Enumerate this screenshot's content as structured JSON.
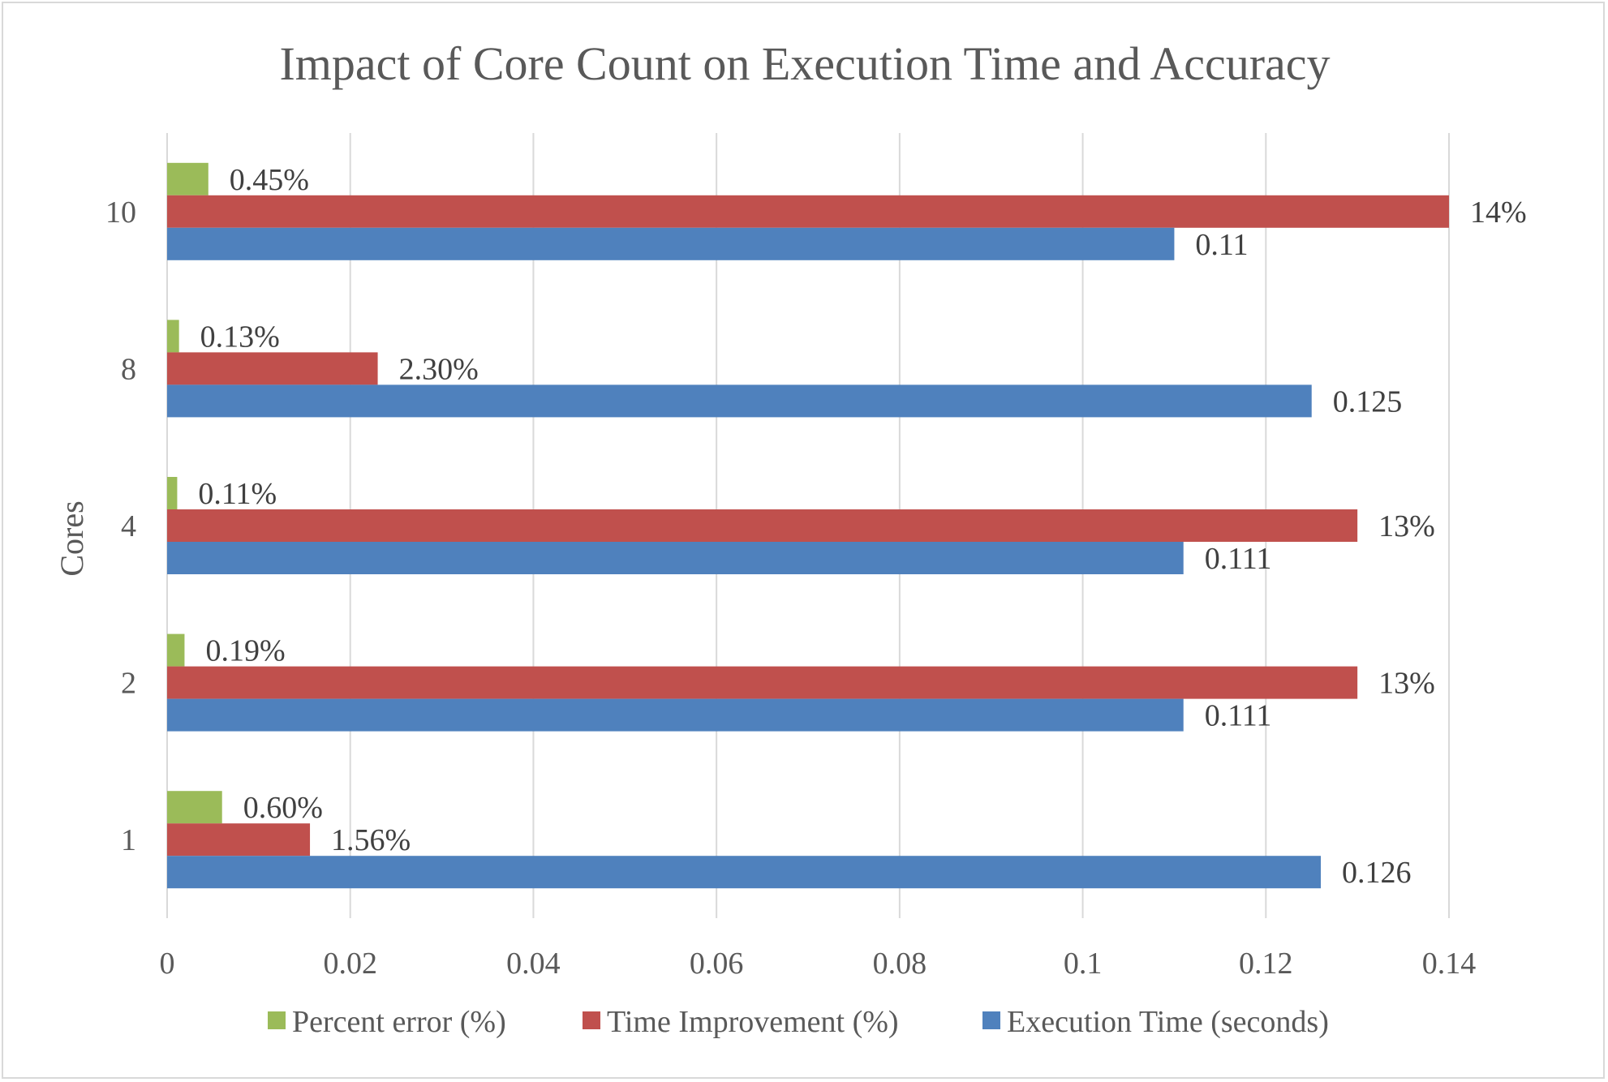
{
  "chart_data": {
    "type": "bar",
    "orientation": "horizontal",
    "title": "Impact of Core Count on Execution Time and Accuracy",
    "xlabel": "",
    "ylabel": "Cores",
    "categories": [
      "1",
      "2",
      "4",
      "8",
      "10"
    ],
    "xlim": [
      0,
      0.14
    ],
    "xticks": [
      "0",
      "0.02",
      "0.04",
      "0.06",
      "0.08",
      "0.1",
      "0.12",
      "0.14"
    ],
    "grid": true,
    "legend_position": "bottom",
    "series": [
      {
        "name": "Percent error (%)",
        "color": "#9bbb59",
        "values": [
          0.006,
          0.0019,
          0.0011,
          0.0013,
          0.0045
        ],
        "labels": [
          "0.60%",
          "0.19%",
          "0.11%",
          "0.13%",
          "0.45%"
        ]
      },
      {
        "name": "Time Improvement (%)",
        "color": "#c0504d",
        "values": [
          0.0156,
          0.13,
          0.13,
          0.023,
          0.14
        ],
        "labels": [
          "1.56%",
          "13%",
          "13%",
          "2.30%",
          "14%"
        ]
      },
      {
        "name": "Execution Time (seconds)",
        "color": "#4f81bd",
        "values": [
          0.126,
          0.111,
          0.111,
          0.125,
          0.11
        ],
        "labels": [
          "0.126",
          "0.111",
          "0.111",
          "0.125",
          "0.11"
        ]
      }
    ]
  }
}
